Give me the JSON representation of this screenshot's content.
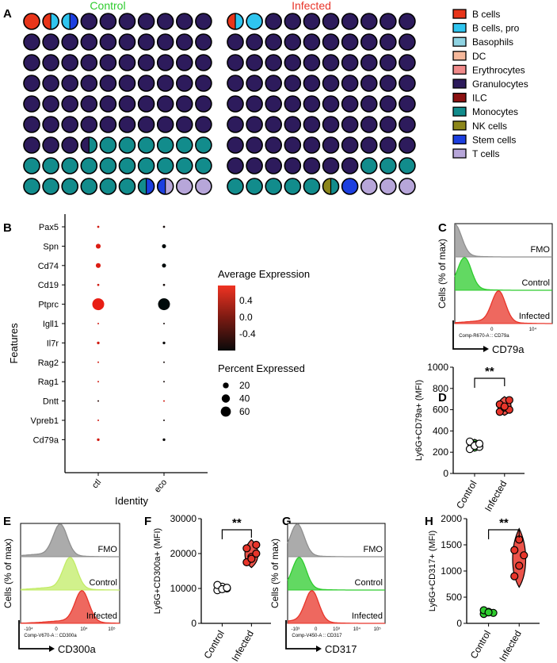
{
  "colors": {
    "B cells": "#e8351a",
    "B cells, pro": "#2fc5ef",
    "Basophils": "#8fd3e2",
    "DC": "#f6b89b",
    "Erythrocytes": "#f08a8a",
    "Granulocytes": "#2d1b5c",
    "ILC": "#8c1111",
    "Monocytes": "#128c8c",
    "NK cells": "#8c861a",
    "Stem cells": "#1c3fe0",
    "T cells": "#b7a6d9",
    "green": "#2ecc2e",
    "red": "#e8352a",
    "grey": "#8f8f8f",
    "light_green": "#c2ec66"
  },
  "panel_letters": [
    "A",
    "B",
    "C",
    "D",
    "E",
    "F",
    "G",
    "H"
  ],
  "chart_data": [
    {
      "panel": "A",
      "type": "waffle",
      "groups": [
        {
          "title": "Control",
          "title_color": "#2ecc2e",
          "grid": [
            [
              [
                "B cells"
              ],
              [
                "B cells",
                "B cells, pro"
              ],
              [
                "B cells, pro",
                "Stem cells"
              ],
              [
                "Granulocytes"
              ],
              [
                "Granulocytes"
              ],
              [
                "Granulocytes"
              ],
              [
                "Granulocytes"
              ],
              [
                "Granulocytes"
              ],
              [
                "Granulocytes"
              ],
              [
                "Granulocytes"
              ]
            ],
            [
              [
                "Granulocytes"
              ],
              [
                "Granulocytes"
              ],
              [
                "Granulocytes"
              ],
              [
                "Granulocytes"
              ],
              [
                "Granulocytes"
              ],
              [
                "Granulocytes"
              ],
              [
                "Granulocytes"
              ],
              [
                "Granulocytes"
              ],
              [
                "Granulocytes"
              ],
              [
                "Granulocytes"
              ]
            ],
            [
              [
                "Granulocytes"
              ],
              [
                "Granulocytes"
              ],
              [
                "Granulocytes"
              ],
              [
                "Granulocytes"
              ],
              [
                "Granulocytes"
              ],
              [
                "Granulocytes"
              ],
              [
                "Granulocytes"
              ],
              [
                "Granulocytes"
              ],
              [
                "Granulocytes"
              ],
              [
                "Granulocytes"
              ]
            ],
            [
              [
                "Granulocytes"
              ],
              [
                "Granulocytes"
              ],
              [
                "Granulocytes"
              ],
              [
                "Granulocytes"
              ],
              [
                "Granulocytes"
              ],
              [
                "Granulocytes"
              ],
              [
                "Granulocytes"
              ],
              [
                "Granulocytes"
              ],
              [
                "Granulocytes"
              ],
              [
                "Granulocytes"
              ]
            ],
            [
              [
                "Granulocytes"
              ],
              [
                "Granulocytes"
              ],
              [
                "Granulocytes"
              ],
              [
                "Granulocytes"
              ],
              [
                "Granulocytes"
              ],
              [
                "Granulocytes"
              ],
              [
                "Granulocytes"
              ],
              [
                "Granulocytes"
              ],
              [
                "Granulocytes"
              ],
              [
                "Granulocytes"
              ]
            ],
            [
              [
                "Granulocytes"
              ],
              [
                "Granulocytes"
              ],
              [
                "Granulocytes"
              ],
              [
                "Granulocytes"
              ],
              [
                "Granulocytes"
              ],
              [
                "Granulocytes"
              ],
              [
                "Granulocytes"
              ],
              [
                "Granulocytes"
              ],
              [
                "Granulocytes"
              ],
              [
                "Granulocytes"
              ]
            ],
            [
              [
                "Granulocytes"
              ],
              [
                "Granulocytes"
              ],
              [
                "Granulocytes"
              ],
              [
                "Granulocytes",
                "Monocytes"
              ],
              [
                "Monocytes"
              ],
              [
                "Monocytes"
              ],
              [
                "Monocytes"
              ],
              [
                "Monocytes"
              ],
              [
                "Monocytes"
              ],
              [
                "Monocytes"
              ]
            ],
            [
              [
                "Monocytes"
              ],
              [
                "Monocytes"
              ],
              [
                "Monocytes"
              ],
              [
                "Monocytes"
              ],
              [
                "Monocytes"
              ],
              [
                "Monocytes"
              ],
              [
                "Monocytes"
              ],
              [
                "Monocytes"
              ],
              [
                "Monocytes"
              ],
              [
                "Monocytes"
              ]
            ],
            [
              [
                "Monocytes"
              ],
              [
                "Monocytes"
              ],
              [
                "Monocytes"
              ],
              [
                "Monocytes"
              ],
              [
                "Monocytes"
              ],
              [
                "Monocytes"
              ],
              [
                "Monocytes",
                "Stem cells"
              ],
              [
                "Stem cells",
                "T cells"
              ],
              [
                "T cells"
              ],
              [
                "T cells"
              ]
            ]
          ]
        },
        {
          "title": "Infected",
          "title_color": "#e8352a",
          "grid": [
            [
              [
                "B cells",
                "B cells, pro"
              ],
              [
                "B cells, pro"
              ],
              [
                "Granulocytes"
              ],
              [
                "Granulocytes"
              ],
              [
                "Granulocytes"
              ],
              [
                "Granulocytes"
              ],
              [
                "Granulocytes"
              ],
              [
                "Granulocytes"
              ],
              [
                "Granulocytes"
              ],
              [
                "Granulocytes"
              ]
            ],
            [
              [
                "Granulocytes"
              ],
              [
                "Granulocytes"
              ],
              [
                "Granulocytes"
              ],
              [
                "Granulocytes"
              ],
              [
                "Granulocytes"
              ],
              [
                "Granulocytes"
              ],
              [
                "Granulocytes"
              ],
              [
                "Granulocytes"
              ],
              [
                "Granulocytes"
              ],
              [
                "Granulocytes"
              ]
            ],
            [
              [
                "Granulocytes"
              ],
              [
                "Granulocytes"
              ],
              [
                "Granulocytes"
              ],
              [
                "Granulocytes"
              ],
              [
                "Granulocytes"
              ],
              [
                "Granulocytes"
              ],
              [
                "Granulocytes"
              ],
              [
                "Granulocytes"
              ],
              [
                "Granulocytes"
              ],
              [
                "Granulocytes"
              ]
            ],
            [
              [
                "Granulocytes"
              ],
              [
                "Granulocytes"
              ],
              [
                "Granulocytes"
              ],
              [
                "Granulocytes"
              ],
              [
                "Granulocytes"
              ],
              [
                "Granulocytes"
              ],
              [
                "Granulocytes"
              ],
              [
                "Granulocytes"
              ],
              [
                "Granulocytes"
              ],
              [
                "Granulocytes"
              ]
            ],
            [
              [
                "Granulocytes"
              ],
              [
                "Granulocytes"
              ],
              [
                "Granulocytes"
              ],
              [
                "Granulocytes"
              ],
              [
                "Granulocytes"
              ],
              [
                "Granulocytes"
              ],
              [
                "Granulocytes"
              ],
              [
                "Granulocytes"
              ],
              [
                "Granulocytes"
              ],
              [
                "Granulocytes"
              ]
            ],
            [
              [
                "Granulocytes"
              ],
              [
                "Granulocytes"
              ],
              [
                "Granulocytes"
              ],
              [
                "Granulocytes"
              ],
              [
                "Granulocytes"
              ],
              [
                "Granulocytes"
              ],
              [
                "Granulocytes"
              ],
              [
                "Granulocytes"
              ],
              [
                "Granulocytes"
              ],
              [
                "Granulocytes"
              ]
            ],
            [
              [
                "Granulocytes"
              ],
              [
                "Granulocytes"
              ],
              [
                "Granulocytes"
              ],
              [
                "Granulocytes"
              ],
              [
                "Granulocytes"
              ],
              [
                "Granulocytes"
              ],
              [
                "Granulocytes"
              ],
              [
                "Granulocytes"
              ],
              [
                "Granulocytes"
              ],
              [
                "Granulocytes"
              ]
            ],
            [
              [
                "Granulocytes"
              ],
              [
                "Granulocytes"
              ],
              [
                "Granulocytes"
              ],
              [
                "Granulocytes"
              ],
              [
                "Granulocytes"
              ],
              [
                "Granulocytes"
              ],
              [
                "Granulocytes"
              ],
              [
                "Monocytes"
              ],
              [
                "Monocytes"
              ],
              [
                "Monocytes"
              ]
            ],
            [
              [
                "Monocytes"
              ],
              [
                "Monocytes"
              ],
              [
                "Monocytes"
              ],
              [
                "Monocytes"
              ],
              [
                "Monocytes"
              ],
              [
                "NK cells",
                "Monocytes"
              ],
              [
                "Stem cells"
              ],
              [
                "T cells"
              ],
              [
                "T cells"
              ],
              [
                "T cells"
              ]
            ]
          ]
        }
      ],
      "legend": [
        "B cells",
        "B cells, pro",
        "Basophils",
        "DC",
        "Erythrocytes",
        "Granulocytes",
        "ILC",
        "Monocytes",
        "NK cells",
        "Stem cells",
        "T cells"
      ]
    },
    {
      "panel": "B",
      "type": "dotplot",
      "xlabel": "Identity",
      "ylabel": "Features",
      "identities": [
        "ctl",
        "eco"
      ],
      "features": [
        "Pax5",
        "Spn",
        "Cd74",
        "Cd19",
        "Ptprc",
        "Igll1",
        "Il7r",
        "Rag2",
        "Rag1",
        "Dntt",
        "Vpreb1",
        "Cd79a"
      ],
      "avg_expression": [
        [
          0.4,
          -0.4
        ],
        [
          0.45,
          -0.5
        ],
        [
          0.45,
          -0.5
        ],
        [
          0.4,
          -0.4
        ],
        [
          0.5,
          -0.5
        ],
        [
          0.4,
          -0.4
        ],
        [
          0.4,
          -0.45
        ],
        [
          0.4,
          -0.4
        ],
        [
          0.4,
          -0.4
        ],
        [
          -0.3,
          0.4
        ],
        [
          0.4,
          -0.4
        ],
        [
          0.4,
          -0.45
        ]
      ],
      "pct_expressed": [
        [
          2,
          2
        ],
        [
          10,
          7
        ],
        [
          10,
          7
        ],
        [
          2,
          2
        ],
        [
          60,
          60
        ],
        [
          1,
          1
        ],
        [
          3,
          3
        ],
        [
          1,
          1
        ],
        [
          1,
          1
        ],
        [
          1,
          1
        ],
        [
          1,
          1
        ],
        [
          3,
          3
        ]
      ],
      "color_legend_title": "Average Expression",
      "color_ticks": [
        "0.4",
        "0.0",
        "-0.4"
      ],
      "color_range": [
        -0.5,
        0.5
      ],
      "size_legend_title": "Percent Expressed",
      "size_ticks": [
        20,
        40,
        60
      ]
    },
    {
      "panel": "C",
      "type": "histogram",
      "ylabel": "Cells (% of max)",
      "xlabel": "CD79a",
      "channel_label": "Comp-R670-A :: CD79a",
      "tick_labels": [
        "0",
        "10⁴"
      ],
      "tracks": [
        {
          "label": "FMO",
          "color": "#8f8f8f",
          "peak": 0.0
        },
        {
          "label": "Control",
          "color": "#2ecc2e",
          "peak": 0.1
        },
        {
          "label": "Infected",
          "color": "#e8352a",
          "peak": 0.45
        }
      ]
    },
    {
      "panel": "D",
      "type": "violin",
      "ylabel": "Ly6G+CD79a+ (MFI)",
      "ylim": [
        0,
        1000
      ],
      "yticks": [
        0,
        200,
        400,
        600,
        800,
        1000
      ],
      "categories": [
        "Control",
        "Infected"
      ],
      "significance": "**",
      "series": [
        {
          "name": "Control",
          "values": [
            230,
            270,
            250,
            300,
            260,
            280
          ],
          "fill": "#2ecc2e",
          "dot": "#ffffff"
        },
        {
          "name": "Infected",
          "values": [
            580,
            620,
            600,
            650,
            630,
            690
          ],
          "fill": "#e8352a",
          "dot": "#e8352a"
        }
      ]
    },
    {
      "panel": "E",
      "type": "histogram",
      "ylabel": "Cells (% of max)",
      "xlabel": "CD300a",
      "channel_label": "Comp-V670-A :: CD300a",
      "tick_labels": [
        "-10⁴",
        "0",
        "10⁴",
        "10⁵"
      ],
      "tracks": [
        {
          "label": "FMO",
          "color": "#8f8f8f",
          "peak": 0.4
        },
        {
          "label": "Control",
          "color": "#c2ec66",
          "peak": 0.5
        },
        {
          "label": "Infected",
          "color": "#e8352a",
          "peak": 0.62
        }
      ]
    },
    {
      "panel": "F",
      "type": "violin",
      "ylabel": "Ly6G+CD300a+ (MFI)",
      "ylim": [
        0,
        30000
      ],
      "yticks": [
        0,
        10000,
        20000,
        30000
      ],
      "categories": [
        "Control",
        "Infected"
      ],
      "significance": "**",
      "series": [
        {
          "name": "Control",
          "values": [
            9500,
            10500,
            10000,
            11000,
            9800,
            10200
          ],
          "fill": "#2ecc2e",
          "dot": "#ffffff"
        },
        {
          "name": "Infected",
          "values": [
            17500,
            19000,
            20000,
            21500,
            18500,
            22500
          ],
          "fill": "#e8352a",
          "dot": "#e8352a"
        }
      ]
    },
    {
      "panel": "G",
      "type": "histogram",
      "ylabel": "Cells (% of max)",
      "xlabel": "CD317",
      "channel_label": "Comp-V450-A :: CD317",
      "tick_labels": [
        "-10³",
        "0",
        "10³",
        "10⁴",
        "10⁵"
      ],
      "tracks": [
        {
          "label": "FMO",
          "color": "#8f8f8f",
          "peak": 0.1
        },
        {
          "label": "Control",
          "color": "#2ecc2e",
          "peak": 0.12
        },
        {
          "label": "Infected",
          "color": "#e8352a",
          "peak": 0.25
        }
      ]
    },
    {
      "panel": "H",
      "type": "violin",
      "ylabel": "Ly6G+CD317+ (MFI)",
      "ylim": [
        0,
        2000
      ],
      "yticks": [
        0,
        500,
        1000,
        1500,
        2000
      ],
      "categories": [
        "Control",
        "Infected"
      ],
      "significance": "**",
      "series": [
        {
          "name": "Control",
          "values": [
            180,
            220,
            200,
            250,
            210
          ],
          "fill": "#2ecc2e",
          "dot": "#2ecc2e"
        },
        {
          "name": "Infected",
          "values": [
            900,
            1100,
            1300,
            1400,
            1600
          ],
          "fill": "#e8352a",
          "dot": "#e8352a"
        }
      ]
    }
  ]
}
